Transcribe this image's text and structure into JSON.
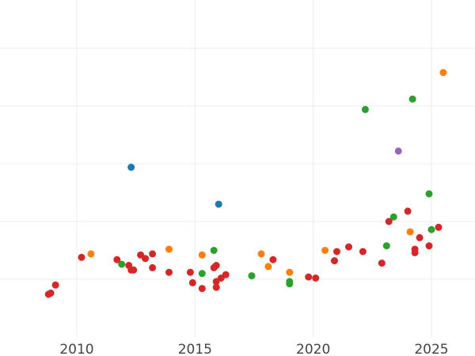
{
  "chart_data": {
    "type": "scatter",
    "title": "",
    "xlabel": "",
    "ylabel": "",
    "xlim": [
      2006.5,
      2026.8
    ],
    "ylim": [
      0,
      30
    ],
    "x_ticks": [
      2010,
      2015,
      2020,
      2025
    ],
    "x_tick_labels": [
      "2010",
      "2015",
      "2020",
      "2025"
    ],
    "y_gridlines": [
      5,
      10,
      15,
      20,
      25
    ],
    "grid": true,
    "legend": "none",
    "colors": {
      "blue": "#1f77b4",
      "orange": "#ff7f0e",
      "green": "#2ca02c",
      "red": "#d62728",
      "purple": "#9467bd"
    },
    "series": [
      {
        "color_key": "blue",
        "points": [
          [
            2012.3,
            14.7
          ],
          [
            2016.0,
            11.5
          ]
        ]
      },
      {
        "color_key": "orange",
        "points": [
          [
            2010.6,
            7.2
          ],
          [
            2013.9,
            7.6
          ],
          [
            2015.3,
            7.1
          ],
          [
            2017.8,
            7.2
          ],
          [
            2018.1,
            6.1
          ],
          [
            2019.0,
            5.6
          ],
          [
            2020.5,
            7.5
          ],
          [
            2024.1,
            9.1
          ],
          [
            2025.5,
            22.9
          ]
        ]
      },
      {
        "color_key": "green",
        "points": [
          [
            2011.9,
            6.3
          ],
          [
            2015.3,
            5.5
          ],
          [
            2015.8,
            7.5
          ],
          [
            2017.4,
            5.3
          ],
          [
            2019.0,
            4.8
          ],
          [
            2019.0,
            4.6
          ],
          [
            2022.2,
            19.7
          ],
          [
            2023.1,
            7.9
          ],
          [
            2023.4,
            10.4
          ],
          [
            2024.2,
            20.6
          ],
          [
            2024.9,
            12.4
          ],
          [
            2025.0,
            9.3
          ]
        ]
      },
      {
        "color_key": "red",
        "points": [
          [
            2008.8,
            3.7
          ],
          [
            2008.9,
            3.8
          ],
          [
            2009.1,
            4.5
          ],
          [
            2010.2,
            6.9
          ],
          [
            2011.7,
            6.7
          ],
          [
            2012.2,
            6.2
          ],
          [
            2012.3,
            5.8
          ],
          [
            2012.4,
            5.8
          ],
          [
            2012.7,
            7.1
          ],
          [
            2012.9,
            6.8
          ],
          [
            2013.2,
            7.2
          ],
          [
            2013.2,
            6.0
          ],
          [
            2013.9,
            5.6
          ],
          [
            2014.8,
            5.6
          ],
          [
            2014.9,
            4.7
          ],
          [
            2015.3,
            4.2
          ],
          [
            2015.8,
            6.0
          ],
          [
            2015.9,
            6.2
          ],
          [
            2015.9,
            4.8
          ],
          [
            2015.9,
            4.3
          ],
          [
            2016.1,
            5.1
          ],
          [
            2016.3,
            5.4
          ],
          [
            2018.3,
            6.7
          ],
          [
            2019.8,
            5.2
          ],
          [
            2020.1,
            5.1
          ],
          [
            2020.9,
            6.6
          ],
          [
            2021.0,
            7.4
          ],
          [
            2021.5,
            7.8
          ],
          [
            2022.1,
            7.4
          ],
          [
            2022.9,
            6.4
          ],
          [
            2023.2,
            10.0
          ],
          [
            2024.0,
            10.9
          ],
          [
            2024.3,
            7.6
          ],
          [
            2024.3,
            7.3
          ],
          [
            2024.5,
            8.6
          ],
          [
            2024.9,
            7.9
          ],
          [
            2025.3,
            9.5
          ]
        ]
      },
      {
        "color_key": "purple",
        "points": [
          [
            2023.6,
            16.1
          ]
        ]
      }
    ]
  }
}
